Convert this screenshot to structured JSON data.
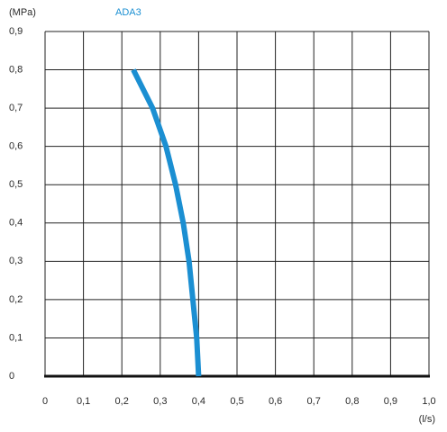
{
  "chart_data": {
    "type": "line",
    "title": "ADA3",
    "x_label": "(l/s)",
    "y_label": "(MPa)",
    "x": [
      0.4,
      0.395,
      0.385,
      0.375,
      0.36,
      0.34,
      0.315,
      0.28,
      0.23
    ],
    "values": [
      0,
      0.1,
      0.2,
      0.3,
      0.4,
      0.5,
      0.6,
      0.7,
      0.8
    ],
    "color": "#1b8fd2",
    "xlim": [
      0,
      1
    ],
    "ylim": [
      0,
      0.9
    ],
    "xticks": [
      0,
      {
        "value": 0.1,
        "label": "0,1"
      },
      {
        "value": 0.2,
        "label": "0,2"
      },
      {
        "value": 0.3,
        "label": "0,3"
      },
      {
        "value": 0.4,
        "label": "0,4"
      },
      {
        "value": 0.5,
        "label": "0,5"
      },
      {
        "value": 0.6,
        "label": "0,6"
      },
      {
        "value": 0.7,
        "label": "0,7"
      },
      {
        "value": 0.8,
        "label": "0,8"
      },
      {
        "value": 0.9,
        "label": "0,9"
      },
      {
        "value": 1,
        "label": "1,0"
      }
    ],
    "yticks": [
      0,
      {
        "value": 0.1,
        "label": "0,1"
      },
      {
        "value": 0.2,
        "label": "0,2"
      },
      {
        "value": 0.3,
        "label": "0,3"
      },
      {
        "value": 0.4,
        "label": "0,4"
      },
      {
        "value": 0.5,
        "label": "0,5"
      },
      {
        "value": 0.6,
        "label": "0,6"
      },
      {
        "value": 0.7,
        "label": "0,7"
      },
      {
        "value": 0.8,
        "label": "0,8"
      },
      {
        "value": 0.9,
        "label": "0,9"
      }
    ],
    "grid": true
  }
}
